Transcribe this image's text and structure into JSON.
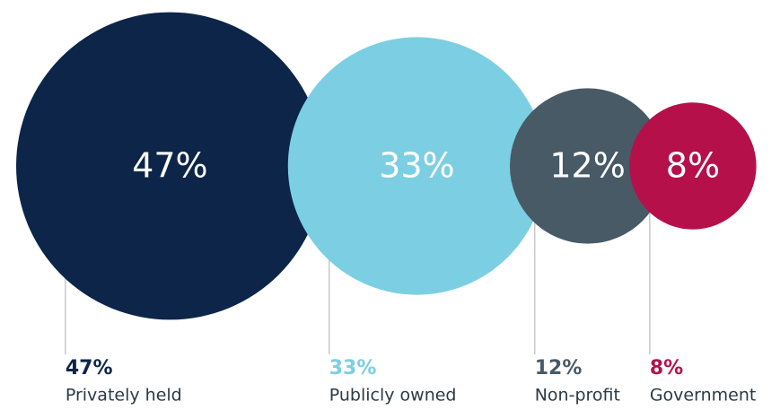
{
  "chart_data": {
    "type": "bubble",
    "categories": [
      "Privately held",
      "Publicly owned",
      "Non-profit",
      "Government"
    ],
    "values": [
      47,
      33,
      12,
      8
    ],
    "value_labels": [
      "47%",
      "33%",
      "12%",
      "8%"
    ],
    "colors": [
      "#0c2548",
      "#7ccfe2",
      "#475a66",
      "#b5104a"
    ]
  }
}
